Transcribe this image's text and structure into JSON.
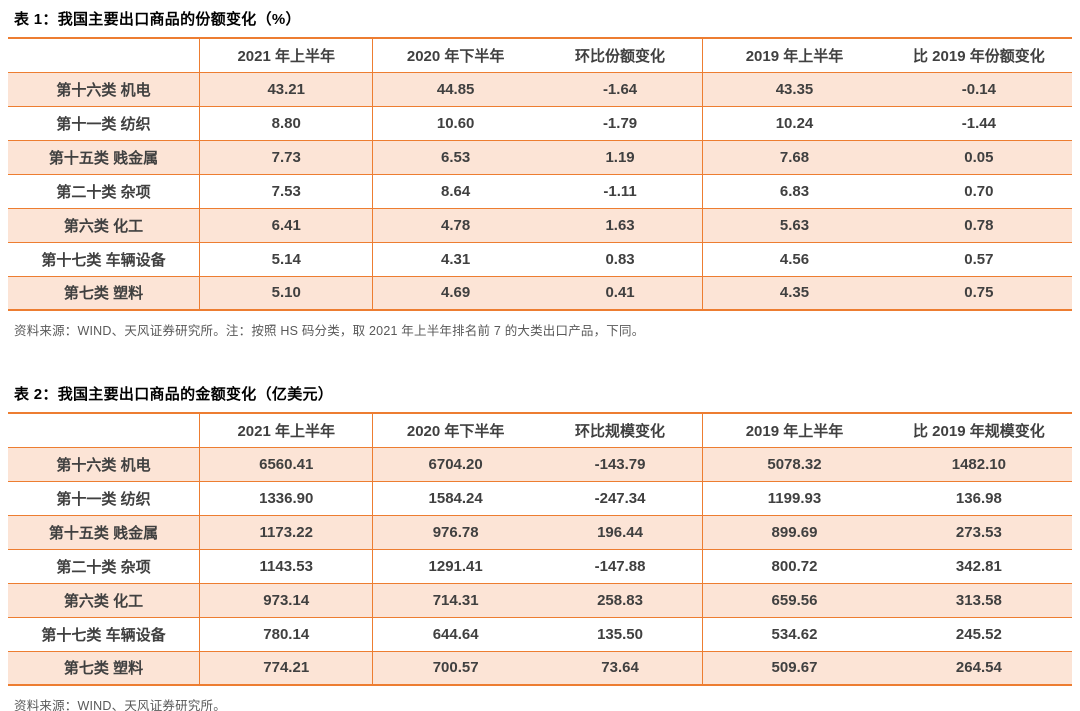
{
  "colors": {
    "border_orange": "#ED7D31",
    "row_fill_peach": "#FCE4D6",
    "cell_text_dark": "#404040",
    "negative_red": "#FF0000",
    "note_gray": "#595959",
    "title_black": "#000000"
  },
  "tables": [
    {
      "title": "表 1：我国主要出口商品的份额变化（%）",
      "columns": [
        "",
        "2021 年上半年",
        "2020 年下半年",
        "环比份额变化",
        "2019 年上半年",
        "比 2019 年份额变化"
      ],
      "rows": [
        {
          "label": "第十六类 机电",
          "values": [
            "43.21",
            "44.85",
            "-1.64",
            "43.35",
            "-0.14"
          ]
        },
        {
          "label": "第十一类 纺织",
          "values": [
            "8.80",
            "10.60",
            "-1.79",
            "10.24",
            "-1.44"
          ]
        },
        {
          "label": "第十五类 贱金属",
          "values": [
            "7.73",
            "6.53",
            "1.19",
            "7.68",
            "0.05"
          ]
        },
        {
          "label": "第二十类 杂项",
          "values": [
            "7.53",
            "8.64",
            "-1.11",
            "6.83",
            "0.70"
          ]
        },
        {
          "label": "第六类 化工",
          "values": [
            "6.41",
            "4.78",
            "1.63",
            "5.63",
            "0.78"
          ]
        },
        {
          "label": "第十七类 车辆设备",
          "values": [
            "5.14",
            "4.31",
            "0.83",
            "4.56",
            "0.57"
          ]
        },
        {
          "label": "第七类 塑料",
          "values": [
            "5.10",
            "4.69",
            "0.41",
            "4.35",
            "0.75"
          ]
        }
      ],
      "note": "资料来源：WIND、天风证券研究所。注：按照 HS 码分类，取 2021 年上半年排名前 7 的大类出口产品，下同。"
    },
    {
      "title": "表 2：我国主要出口商品的金额变化（亿美元）",
      "columns": [
        "",
        "2021 年上半年",
        "2020 年下半年",
        "环比规模变化",
        "2019 年上半年",
        "比 2019 年规模变化"
      ],
      "rows": [
        {
          "label": "第十六类 机电",
          "values": [
            "6560.41",
            "6704.20",
            "-143.79",
            "5078.32",
            "1482.10"
          ]
        },
        {
          "label": "第十一类 纺织",
          "values": [
            "1336.90",
            "1584.24",
            "-247.34",
            "1199.93",
            "136.98"
          ]
        },
        {
          "label": "第十五类 贱金属",
          "values": [
            "1173.22",
            "976.78",
            "196.44",
            "899.69",
            "273.53"
          ]
        },
        {
          "label": "第二十类 杂项",
          "values": [
            "1143.53",
            "1291.41",
            "-147.88",
            "800.72",
            "342.81"
          ]
        },
        {
          "label": "第六类 化工",
          "values": [
            "973.14",
            "714.31",
            "258.83",
            "659.56",
            "313.58"
          ]
        },
        {
          "label": "第十七类 车辆设备",
          "values": [
            "780.14",
            "644.64",
            "135.50",
            "534.62",
            "245.52"
          ]
        },
        {
          "label": "第七类 塑料",
          "values": [
            "774.21",
            "700.57",
            "73.64",
            "509.67",
            "264.54"
          ]
        }
      ],
      "note": "资料来源：WIND、天风证券研究所。"
    }
  ]
}
